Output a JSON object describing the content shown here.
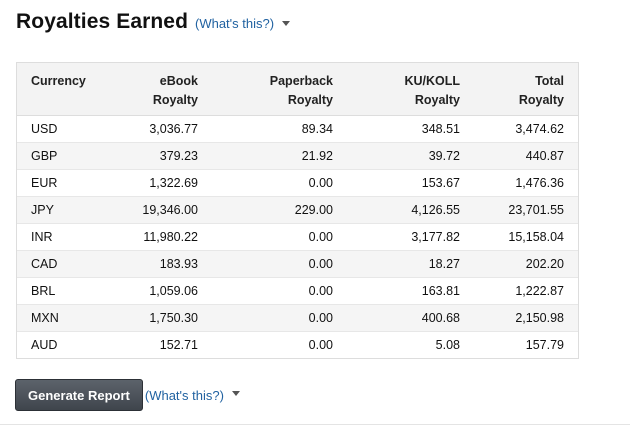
{
  "header": {
    "title": "Royalties Earned",
    "help_link": "(What's this?)"
  },
  "table": {
    "columns": [
      {
        "line1": "Currency",
        "line2": ""
      },
      {
        "line1": "eBook",
        "line2": "Royalty"
      },
      {
        "line1": "Paperback",
        "line2": "Royalty"
      },
      {
        "line1": "KU/KOLL",
        "line2": "Royalty"
      },
      {
        "line1": "Total",
        "line2": "Royalty"
      }
    ],
    "rows": [
      [
        "USD",
        "3,036.77",
        "89.34",
        "348.51",
        "3,474.62"
      ],
      [
        "GBP",
        "379.23",
        "21.92",
        "39.72",
        "440.87"
      ],
      [
        "EUR",
        "1,322.69",
        "0.00",
        "153.67",
        "1,476.36"
      ],
      [
        "JPY",
        "19,346.00",
        "229.00",
        "4,126.55",
        "23,701.55"
      ],
      [
        "INR",
        "11,980.22",
        "0.00",
        "3,177.82",
        "15,158.04"
      ],
      [
        "CAD",
        "183.93",
        "0.00",
        "18.27",
        "202.20"
      ],
      [
        "BRL",
        "1,059.06",
        "0.00",
        "163.81",
        "1,222.87"
      ],
      [
        "MXN",
        "1,750.30",
        "0.00",
        "400.68",
        "2,150.98"
      ],
      [
        "AUD",
        "152.71",
        "0.00",
        "5.08",
        "157.79"
      ]
    ]
  },
  "footer": {
    "generate_label": "Generate Report",
    "help_link": "(What's this?)"
  },
  "colors": {
    "link": "#2162a1",
    "header_bg": "#f3f3f3",
    "button_bg": "#4a5058"
  },
  "icons": {
    "dropdown": "caret-down-icon"
  }
}
